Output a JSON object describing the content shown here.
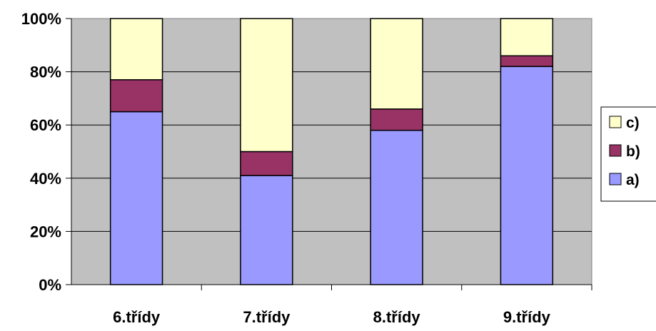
{
  "chart_data": {
    "type": "bar",
    "stacked": true,
    "percent_stacked": true,
    "title": "",
    "xlabel": "",
    "ylabel": "",
    "categories": [
      "6.třídy",
      "7.třídy",
      "8.třídy",
      "9.třídy"
    ],
    "series": [
      {
        "name": "a)",
        "values": [
          65,
          41,
          58,
          82
        ],
        "color": "#9999ff"
      },
      {
        "name": "b)",
        "values": [
          12,
          9,
          8,
          4
        ],
        "color": "#993366"
      },
      {
        "name": "c)",
        "values": [
          23,
          50,
          34,
          14
        ],
        "color": "#ffffcc"
      }
    ],
    "ylim": [
      0,
      100
    ],
    "yticks": [
      "0%",
      "20%",
      "40%",
      "60%",
      "80%",
      "100%"
    ],
    "grid": true,
    "plot_background": "#c0c0c0",
    "legend_position": "right"
  }
}
